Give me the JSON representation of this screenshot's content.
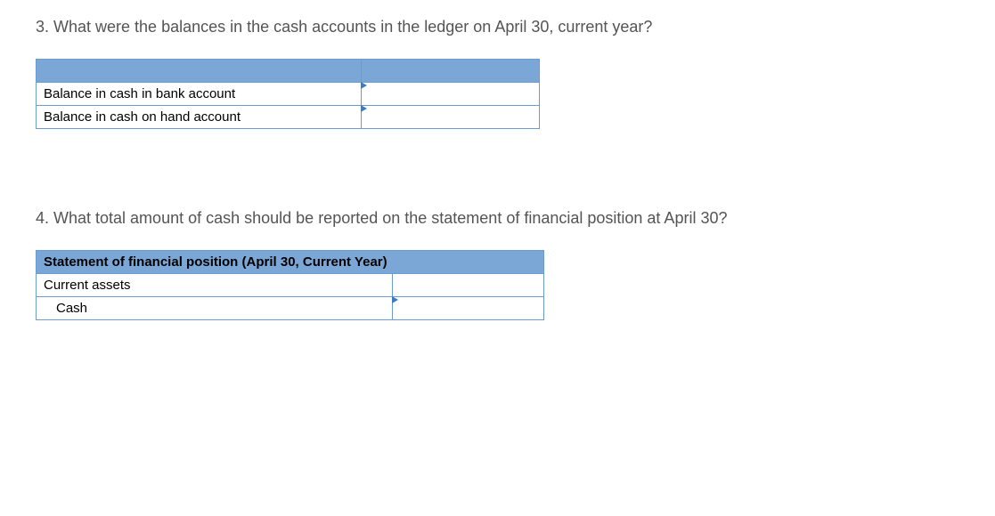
{
  "question3": {
    "text": "3. What were the balances in the cash accounts in the ledger on April 30, current year?",
    "table": {
      "header_col1": "",
      "header_col2": "",
      "rows": [
        {
          "label": "Balance in cash in bank account",
          "value": ""
        },
        {
          "label": "Balance in cash on hand account",
          "value": ""
        }
      ],
      "col_widths": {
        "label": 365,
        "value": 200
      },
      "header_bg": "#7ba7d7",
      "border_color": "#6b9bd1",
      "marker_color": "#3a7bc8"
    }
  },
  "question4": {
    "text": "4. What total amount of cash should be reported on the statement of financial position at April 30?",
    "table": {
      "title": "Statement of financial position (April 30, Current Year)",
      "rows": [
        {
          "label": "Current assets",
          "value": "",
          "indent": false,
          "has_input": false
        },
        {
          "label": "Cash",
          "value": "",
          "indent": true,
          "has_input": true
        }
      ],
      "col_widths": {
        "label": 400,
        "value": 170
      },
      "header_bg": "#7ba7d7",
      "border_color": "#6b9bd1",
      "marker_color": "#3a7bc8"
    }
  },
  "styling": {
    "background_color": "#ffffff",
    "question_text_color": "#545454",
    "question_fontsize": 18,
    "cell_fontsize": 15,
    "cell_text_color": "#000000"
  }
}
